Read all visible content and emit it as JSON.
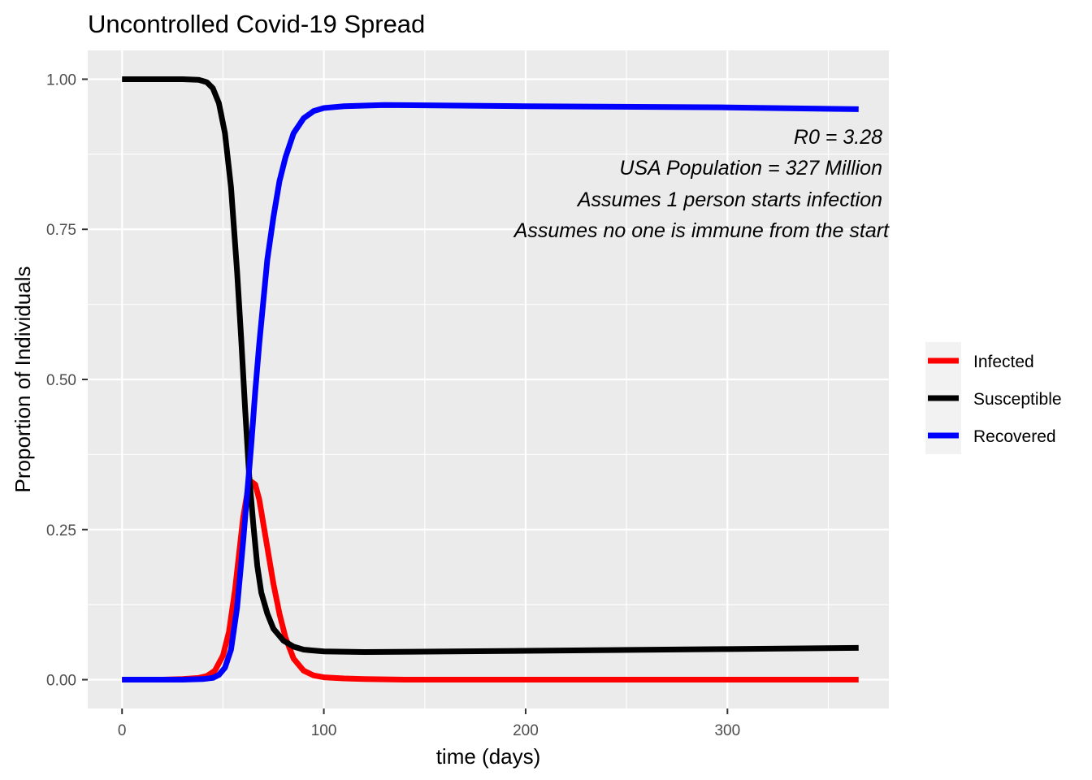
{
  "chart_data": {
    "type": "line",
    "title": "Uncontrolled Covid-19 Spread",
    "xlabel": "time (days)",
    "ylabel": "Proportion of Individuals",
    "xlim": [
      -17,
      380
    ],
    "ylim": [
      -0.048,
      1.048
    ],
    "x_ticks": [
      0,
      100,
      200,
      300
    ],
    "x_tick_labels": [
      "0",
      "100",
      "200",
      "300"
    ],
    "y_ticks": [
      0,
      0.25,
      0.5,
      0.75,
      1.0
    ],
    "y_tick_labels": [
      "0.00",
      "0.25",
      "0.50",
      "0.75",
      "1.00"
    ],
    "grid": true,
    "legend_position": "right",
    "annotations": [
      "R0 = 3.28",
      "USA Population = 327 Million",
      "Assumes 1 person starts infection",
      "Assumes no one is immune from the start"
    ],
    "series": [
      {
        "name": "Infected",
        "color": "#ff0000",
        "points": [
          [
            0,
            0
          ],
          [
            20,
            0
          ],
          [
            30,
            0.001
          ],
          [
            38,
            0.003
          ],
          [
            42,
            0.006
          ],
          [
            46,
            0.015
          ],
          [
            50,
            0.04
          ],
          [
            53,
            0.08
          ],
          [
            56,
            0.15
          ],
          [
            58,
            0.21
          ],
          [
            60,
            0.27
          ],
          [
            62,
            0.31
          ],
          [
            64,
            0.33
          ],
          [
            66,
            0.325
          ],
          [
            68,
            0.3
          ],
          [
            70,
            0.26
          ],
          [
            72,
            0.22
          ],
          [
            75,
            0.16
          ],
          [
            78,
            0.11
          ],
          [
            81,
            0.07
          ],
          [
            85,
            0.035
          ],
          [
            90,
            0.015
          ],
          [
            95,
            0.007
          ],
          [
            100,
            0.004
          ],
          [
            110,
            0.002
          ],
          [
            120,
            0.001
          ],
          [
            140,
            0
          ],
          [
            200,
            0
          ],
          [
            365,
            0
          ]
        ]
      },
      {
        "name": "Susceptible",
        "color": "#000000",
        "points": [
          [
            0,
            1.0
          ],
          [
            30,
            1.0
          ],
          [
            38,
            0.999
          ],
          [
            42,
            0.995
          ],
          [
            45,
            0.985
          ],
          [
            48,
            0.96
          ],
          [
            51,
            0.91
          ],
          [
            54,
            0.82
          ],
          [
            57,
            0.68
          ],
          [
            59,
            0.57
          ],
          [
            61,
            0.45
          ],
          [
            63,
            0.34
          ],
          [
            65,
            0.26
          ],
          [
            67,
            0.19
          ],
          [
            69,
            0.145
          ],
          [
            72,
            0.11
          ],
          [
            75,
            0.085
          ],
          [
            80,
            0.065
          ],
          [
            85,
            0.055
          ],
          [
            90,
            0.05
          ],
          [
            100,
            0.047
          ],
          [
            120,
            0.046
          ],
          [
            200,
            0.048
          ],
          [
            300,
            0.051
          ],
          [
            365,
            0.053
          ]
        ]
      },
      {
        "name": "Recovered",
        "color": "#0000ff",
        "points": [
          [
            0,
            0
          ],
          [
            30,
            0
          ],
          [
            40,
            0.001
          ],
          [
            45,
            0.003
          ],
          [
            48,
            0.008
          ],
          [
            51,
            0.02
          ],
          [
            54,
            0.05
          ],
          [
            57,
            0.12
          ],
          [
            60,
            0.23
          ],
          [
            62,
            0.31
          ],
          [
            64,
            0.39
          ],
          [
            66,
            0.48
          ],
          [
            68,
            0.56
          ],
          [
            70,
            0.63
          ],
          [
            72,
            0.7
          ],
          [
            75,
            0.77
          ],
          [
            78,
            0.83
          ],
          [
            81,
            0.87
          ],
          [
            85,
            0.91
          ],
          [
            90,
            0.935
          ],
          [
            95,
            0.947
          ],
          [
            100,
            0.952
          ],
          [
            110,
            0.955
          ],
          [
            130,
            0.957
          ],
          [
            200,
            0.955
          ],
          [
            300,
            0.953
          ],
          [
            365,
            0.95
          ]
        ]
      }
    ]
  }
}
